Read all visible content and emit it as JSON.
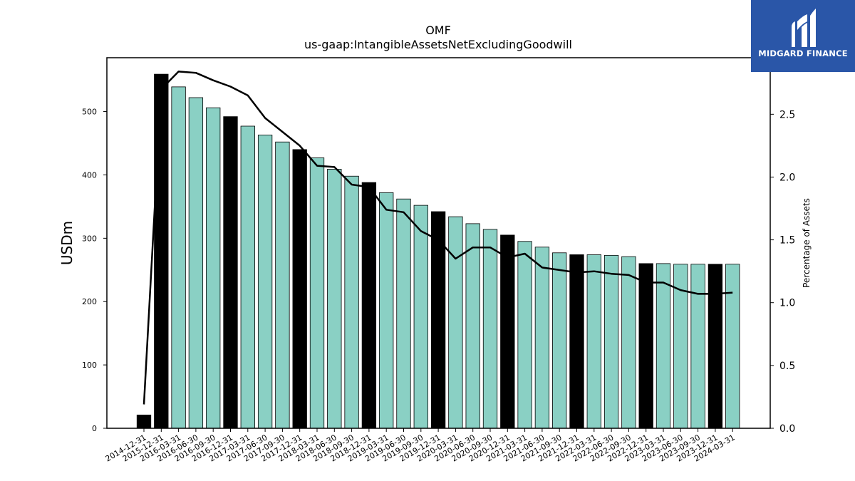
{
  "brand": {
    "name": "MIDGARD FINANCE",
    "logo_icon": "midgard-logo-icon",
    "bg_color": "#2a56a8"
  },
  "chart_data": {
    "type": "bar",
    "title": "OMF",
    "subtitle": "us-gaap:IntangibleAssetsNetExcludingGoodwill",
    "ylabel": "USDm",
    "y2label": "Percentage of Assets",
    "ylim": [
      0,
      585
    ],
    "y2lim": [
      0,
      2.95
    ],
    "yticks": [
      0,
      100,
      200,
      300,
      400,
      500
    ],
    "y2ticks": [
      "0.0",
      "0.5",
      "1.0",
      "1.5",
      "2.0",
      "2.5"
    ],
    "bar_color": "#8ad0c4",
    "highlight_color": "#000000",
    "line_color": "#000000",
    "categories": [
      "2014-12-31",
      "2015-12-31",
      "2016-03-31",
      "2016-06-30",
      "2016-09-30",
      "2016-12-31",
      "2017-03-31",
      "2017-06-30",
      "2017-09-30",
      "2017-12-31",
      "2018-03-31",
      "2018-06-30",
      "2018-09-30",
      "2018-12-31",
      "2019-03-31",
      "2019-06-30",
      "2019-09-30",
      "2019-12-31",
      "2020-03-31",
      "2020-06-30",
      "2020-09-30",
      "2020-12-31",
      "2021-03-31",
      "2021-06-30",
      "2021-09-30",
      "2021-12-31",
      "2022-03-31",
      "2022-06-30",
      "2022-09-30",
      "2022-12-31",
      "2023-03-31",
      "2023-06-30",
      "2023-09-30",
      "2023-12-31",
      "2024-03-31"
    ],
    "series": [
      {
        "values": [
          21,
          559,
          539,
          522,
          506,
          492,
          477,
          463,
          452,
          440,
          427,
          409,
          398,
          388,
          372,
          362,
          352,
          342,
          334,
          323,
          314,
          305,
          295,
          286,
          277,
          274,
          274,
          273,
          271,
          260,
          260,
          259,
          259,
          259,
          259
        ]
      },
      {
        "values": [
          0.19,
          2.7,
          2.84,
          2.83,
          2.77,
          2.72,
          2.65,
          2.47,
          2.36,
          2.25,
          2.09,
          2.08,
          1.94,
          1.92,
          1.74,
          1.72,
          1.57,
          1.5,
          1.35,
          1.44,
          1.44,
          1.36,
          1.39,
          1.28,
          1.26,
          1.24,
          1.25,
          1.23,
          1.22,
          1.16,
          1.16,
          1.1,
          1.07,
          1.07,
          1.08
        ]
      }
    ],
    "highlight_indices": [
      0,
      1,
      5,
      9,
      13,
      17,
      21,
      25,
      29,
      33
    ]
  }
}
